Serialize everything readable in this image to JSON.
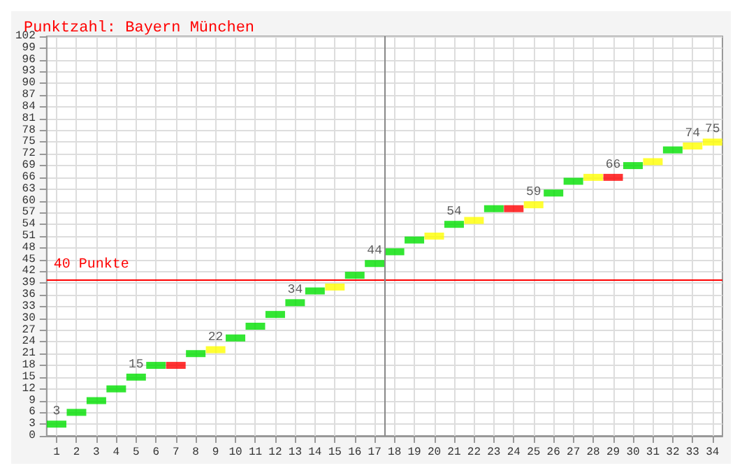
{
  "chart_data": {
    "type": "scatter",
    "title": "Punktzahl: Bayern München",
    "x": [
      1,
      2,
      3,
      4,
      5,
      6,
      7,
      8,
      9,
      10,
      11,
      12,
      13,
      14,
      15,
      16,
      17,
      18,
      19,
      20,
      21,
      22,
      23,
      24,
      25,
      26,
      27,
      28,
      29,
      30,
      31,
      32,
      33,
      34
    ],
    "values": [
      3,
      6,
      9,
      12,
      15,
      18,
      18,
      21,
      22,
      25,
      28,
      31,
      34,
      37,
      38,
      41,
      44,
      47,
      50,
      51,
      54,
      55,
      58,
      58,
      59,
      62,
      65,
      66,
      66,
      69,
      70,
      73,
      74,
      75
    ],
    "colors": [
      "#00e000",
      "#00e000",
      "#00e000",
      "#00e000",
      "#00e000",
      "#00e000",
      "#ff0000",
      "#00e000",
      "#ffff00",
      "#00e000",
      "#00e000",
      "#00e000",
      "#00e000",
      "#00e000",
      "#ffff00",
      "#00e000",
      "#00e000",
      "#00e000",
      "#00e000",
      "#ffff00",
      "#00e000",
      "#ffff00",
      "#00e000",
      "#ff0000",
      "#ffff00",
      "#00e000",
      "#00e000",
      "#ffff00",
      "#ff0000",
      "#00e000",
      "#ffff00",
      "#00e000",
      "#ffff00",
      "#ffff00"
    ],
    "value_labels": [
      "3",
      null,
      null,
      null,
      "15",
      null,
      null,
      null,
      "22",
      null,
      null,
      null,
      "34",
      null,
      null,
      null,
      "44",
      null,
      null,
      null,
      "54",
      null,
      null,
      null,
      "59",
      null,
      null,
      null,
      "66",
      null,
      null,
      null,
      "74",
      "75"
    ],
    "xlim": [
      0.5,
      34.5
    ],
    "xticks": [
      1,
      2,
      3,
      4,
      5,
      6,
      7,
      8,
      9,
      10,
      11,
      12,
      13,
      14,
      15,
      16,
      17,
      18,
      19,
      20,
      21,
      22,
      23,
      24,
      25,
      26,
      27,
      28,
      29,
      30,
      31,
      32,
      33,
      34
    ],
    "ylim": [
      0,
      102
    ],
    "yticks": [
      0,
      3,
      6,
      9,
      12,
      15,
      18,
      21,
      24,
      27,
      30,
      33,
      36,
      39,
      42,
      45,
      48,
      51,
      54,
      57,
      60,
      63,
      66,
      69,
      72,
      75,
      78,
      81,
      84,
      87,
      90,
      93,
      96,
      99,
      102
    ],
    "ref_lines": [
      {
        "axis": "y",
        "value": 40,
        "label": "40 Punkte",
        "color": "#ff0000"
      },
      {
        "axis": "x",
        "value": 17.5,
        "label": null,
        "color": "#888888"
      }
    ],
    "grid": true,
    "marker": "square"
  }
}
